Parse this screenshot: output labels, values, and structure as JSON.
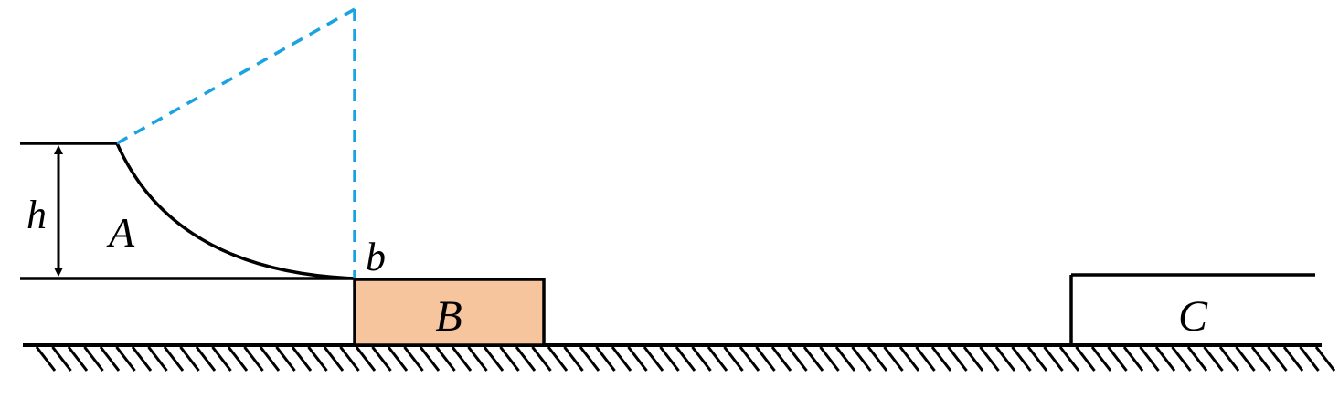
{
  "labels": {
    "height": "h",
    "block_a": "A",
    "block_b": "B",
    "block_c": "C",
    "point_b": "b"
  },
  "colors": {
    "line": "#000000",
    "construction": "#1aa3e0",
    "block_b_fill": "#f7c59d",
    "block_c_fill": "#ffffff",
    "background": "#ffffff"
  }
}
